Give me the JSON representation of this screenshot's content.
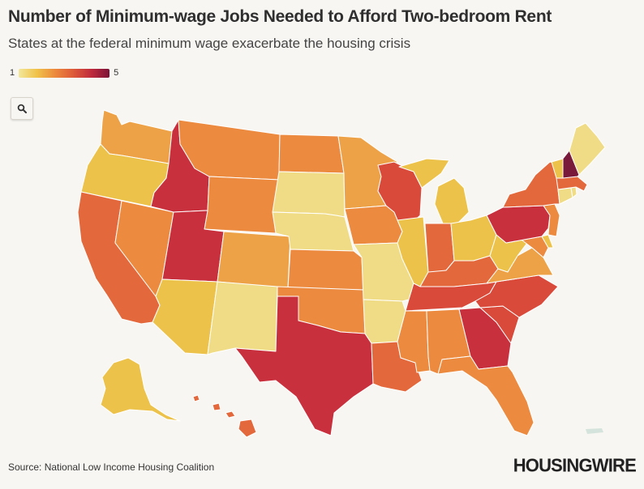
{
  "title": "Number of Minimum-wage Jobs Needed to Afford Two-bedroom Rent",
  "subtitle": "States at the federal minimum wage exacerbate the housing crisis",
  "legend": {
    "min": "1",
    "max": "5"
  },
  "source": "Source: National Low Income Housing Coalition",
  "brand": "HOUSINGWIRE",
  "icons": {
    "zoom": "search-icon"
  },
  "colors": {
    "c1": "#f0dc86",
    "c2": "#ecc24a",
    "c3": "#eda247",
    "c4": "#ec8a3f",
    "c5": "#e3693c",
    "c6": "#d94a3b",
    "c7": "#c9303d",
    "c8": "#7a1a3a",
    "border": "#ffffff"
  },
  "chart_data": {
    "type": "choropleth",
    "scale": [
      1,
      5
    ],
    "states": [
      {
        "id": "WA",
        "level": 3
      },
      {
        "id": "OR",
        "level": 2
      },
      {
        "id": "CA",
        "level": 5
      },
      {
        "id": "ID",
        "level": 7
      },
      {
        "id": "NV",
        "level": 4
      },
      {
        "id": "UT",
        "level": 7
      },
      {
        "id": "AZ",
        "level": 2
      },
      {
        "id": "MT",
        "level": 4
      },
      {
        "id": "WY",
        "level": 4
      },
      {
        "id": "CO",
        "level": 3
      },
      {
        "id": "NM",
        "level": 1
      },
      {
        "id": "ND",
        "level": 4
      },
      {
        "id": "SD",
        "level": 1
      },
      {
        "id": "NE",
        "level": 1
      },
      {
        "id": "KS",
        "level": 4
      },
      {
        "id": "OK",
        "level": 4
      },
      {
        "id": "TX",
        "level": 7
      },
      {
        "id": "MN",
        "level": 3
      },
      {
        "id": "IA",
        "level": 4
      },
      {
        "id": "MO",
        "level": 1
      },
      {
        "id": "AR",
        "level": 1
      },
      {
        "id": "LA",
        "level": 5
      },
      {
        "id": "WI",
        "level": 6
      },
      {
        "id": "IL",
        "level": 2
      },
      {
        "id": "MI",
        "level": 2
      },
      {
        "id": "IN",
        "level": 5
      },
      {
        "id": "OH",
        "level": 2
      },
      {
        "id": "KY",
        "level": 5
      },
      {
        "id": "TN",
        "level": 6
      },
      {
        "id": "MS",
        "level": 4
      },
      {
        "id": "AL",
        "level": 4
      },
      {
        "id": "GA",
        "level": 7
      },
      {
        "id": "FL",
        "level": 4
      },
      {
        "id": "SC",
        "level": 6
      },
      {
        "id": "NC",
        "level": 6
      },
      {
        "id": "VA",
        "level": 3
      },
      {
        "id": "WV",
        "level": 2
      },
      {
        "id": "PA",
        "level": 7
      },
      {
        "id": "NY",
        "level": 5
      },
      {
        "id": "VT",
        "level": 2
      },
      {
        "id": "NH",
        "level": 8
      },
      {
        "id": "ME",
        "level": 1
      },
      {
        "id": "MA",
        "level": 5
      },
      {
        "id": "CT",
        "level": 1
      },
      {
        "id": "RI",
        "level": 1
      },
      {
        "id": "NJ",
        "level": 4
      },
      {
        "id": "DE",
        "level": 2
      },
      {
        "id": "MD",
        "level": 4
      },
      {
        "id": "AK",
        "level": 2
      },
      {
        "id": "HI",
        "level": 5
      }
    ]
  }
}
